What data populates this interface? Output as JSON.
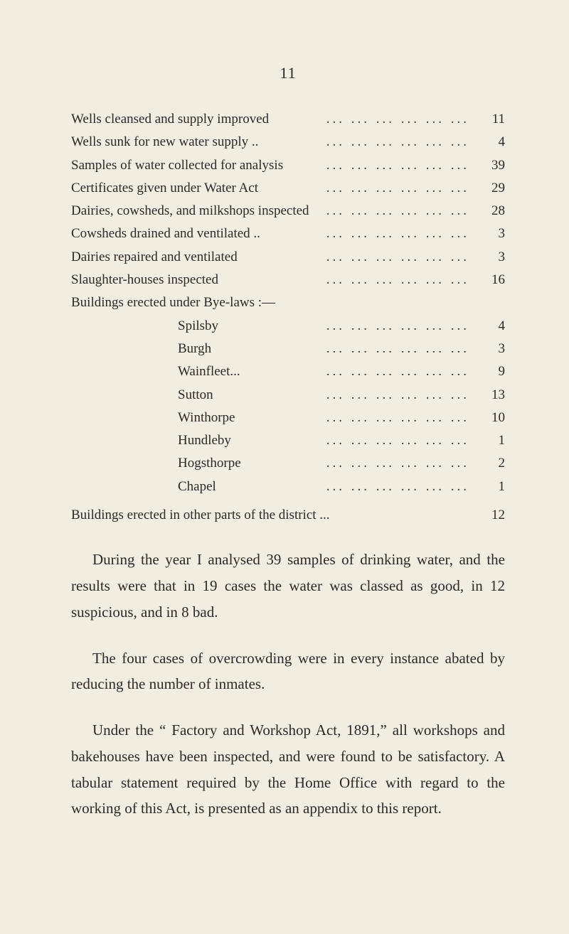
{
  "pageNumber": "11",
  "items": [
    {
      "label": "Wells cleansed and supply improved",
      "value": "11",
      "indent": 0
    },
    {
      "label": "Wells sunk for new water supply ..",
      "value": "4",
      "indent": 0
    },
    {
      "label": "Samples of water collected for analysis",
      "value": "39",
      "indent": 0
    },
    {
      "label": "Certificates given under Water Act",
      "value": "29",
      "indent": 0
    },
    {
      "label": "Dairies, cowsheds, and milkshops inspected",
      "value": "28",
      "indent": 0
    },
    {
      "label": "Cowsheds drained and ventilated ..",
      "value": "3",
      "indent": 0
    },
    {
      "label": "Dairies repaired and ventilated",
      "value": "3",
      "indent": 0
    },
    {
      "label": "Slaughter-houses inspected",
      "value": "16",
      "indent": 0
    }
  ],
  "subIntro": "Buildings erected under Bye-laws :—",
  "subItems": [
    {
      "label": "Spilsby",
      "value": "4",
      "indent": 1
    },
    {
      "label": "Burgh",
      "value": "3",
      "indent": 1
    },
    {
      "label": "Wainfleet...",
      "value": "9",
      "indent": 1
    },
    {
      "label": "Sutton",
      "value": "13",
      "indent": 1
    },
    {
      "label": "Winthorpe",
      "value": "10",
      "indent": 1
    },
    {
      "label": "Hundleby",
      "value": "1",
      "indent": 1
    },
    {
      "label": "Hogsthorpe",
      "value": "2",
      "indent": 1
    },
    {
      "label": "Chapel",
      "value": "1",
      "indent": 1
    }
  ],
  "lastBuilding": {
    "label": "Buildings erected in other parts of the district ...",
    "value": "12"
  },
  "para1": "During the year I analysed 39 samples of drinking water, and the results were that in 19 cases the water was classed as good, in 12 suspicious, and in 8 bad.",
  "para2": "The four cases of overcrowding were in every instance abated by reducing the number of inmates.",
  "para3": "Under the “ Factory and Workshop Act, 1891,” all workshops and bakehouses have been inspected, and were found to be satisfactory. A tabular statement required by the Home Office with regard to the working of this Act, is presented as an appendix to this report."
}
